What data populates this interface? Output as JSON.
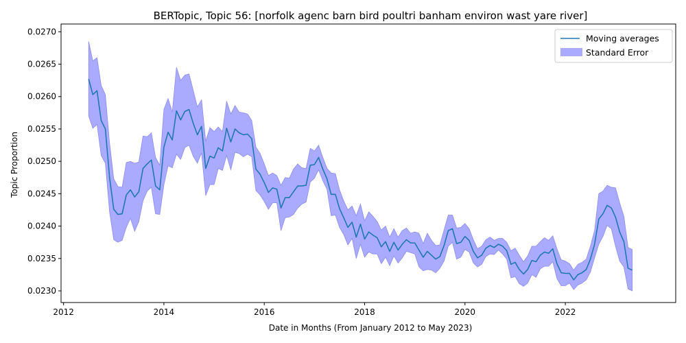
{
  "chart_data": {
    "type": "line",
    "title": "BERTopic, Topic 56: [norfolk agenc barn bird poultri banham environ wast yare river]",
    "xlabel": "Date in Months (From January 2012 to May 2023)",
    "ylabel": "Topic Proportion",
    "xlim": [
      2011.95,
      2024.2
    ],
    "ylim": [
      0.02282,
      0.02712
    ],
    "x_ticks": [
      2012,
      2014,
      2016,
      2018,
      2020,
      2022
    ],
    "y_ticks": [
      0.023,
      0.0235,
      0.024,
      0.0245,
      0.025,
      0.0255,
      0.026,
      0.0265,
      0.027
    ],
    "y_tick_labels": [
      "0.0230",
      "0.0235",
      "0.0240",
      "0.0245",
      "0.0250",
      "0.0255",
      "0.0260",
      "0.0265",
      "0.0270"
    ],
    "legend_position": "top-right",
    "colors": {
      "line": "#1f77b4",
      "band": "#aaaaff",
      "band_edge": "#8c8cf0"
    },
    "series": [
      {
        "name": "Moving averages",
        "kind": "line",
        "x": [
          2012.5,
          2012.583,
          2012.667,
          2012.75,
          2012.833,
          2012.917,
          2013.0,
          2013.083,
          2013.167,
          2013.25,
          2013.333,
          2013.417,
          2013.5,
          2013.583,
          2013.667,
          2013.75,
          2013.833,
          2013.917,
          2014.0,
          2014.083,
          2014.167,
          2014.25,
          2014.333,
          2014.417,
          2014.5,
          2014.583,
          2014.667,
          2014.75,
          2014.833,
          2014.917,
          2015.0,
          2015.083,
          2015.167,
          2015.25,
          2015.333,
          2015.417,
          2015.5,
          2015.583,
          2015.667,
          2015.75,
          2015.833,
          2015.917,
          2016.0,
          2016.083,
          2016.167,
          2016.25,
          2016.333,
          2016.417,
          2016.5,
          2016.583,
          2016.667,
          2016.75,
          2016.833,
          2016.917,
          2017.0,
          2017.083,
          2017.167,
          2017.25,
          2017.333,
          2017.417,
          2017.5,
          2017.583,
          2017.667,
          2017.75,
          2017.833,
          2017.917,
          2018.0,
          2018.083,
          2018.167,
          2018.25,
          2018.333,
          2018.417,
          2018.5,
          2018.583,
          2018.667,
          2018.75,
          2018.833,
          2018.917,
          2019.0,
          2019.083,
          2019.167,
          2019.25,
          2019.333,
          2019.417,
          2019.5,
          2019.583,
          2019.667,
          2019.75,
          2019.833,
          2019.917,
          2020.0,
          2020.083,
          2020.167,
          2020.25,
          2020.333,
          2020.417,
          2020.5,
          2020.583,
          2020.667,
          2020.75,
          2020.833,
          2020.917,
          2021.0,
          2021.083,
          2021.167,
          2021.25,
          2021.333,
          2021.417,
          2021.5,
          2021.583,
          2021.667,
          2021.75,
          2021.833,
          2021.917,
          2022.0,
          2022.083,
          2022.167,
          2022.25,
          2022.333,
          2022.417,
          2022.5,
          2022.583,
          2022.667,
          2022.75,
          2022.833,
          2022.917,
          2023.0,
          2023.083,
          2023.167,
          2023.25,
          2023.333
        ],
        "y": [
          0.02627,
          0.02603,
          0.02609,
          0.02563,
          0.0255,
          0.02475,
          0.02426,
          0.02418,
          0.02419,
          0.02448,
          0.02456,
          0.02445,
          0.02453,
          0.02489,
          0.02496,
          0.02502,
          0.02462,
          0.02456,
          0.02522,
          0.02545,
          0.02533,
          0.02578,
          0.02564,
          0.02577,
          0.0258,
          0.02559,
          0.02541,
          0.02554,
          0.02489,
          0.02508,
          0.02505,
          0.02521,
          0.02516,
          0.02551,
          0.0253,
          0.0255,
          0.02544,
          0.02541,
          0.02542,
          0.02535,
          0.02488,
          0.0248,
          0.02467,
          0.02452,
          0.02459,
          0.02457,
          0.02428,
          0.02444,
          0.02444,
          0.02453,
          0.02462,
          0.02462,
          0.02463,
          0.02494,
          0.02495,
          0.02506,
          0.02488,
          0.02473,
          0.02449,
          0.02449,
          0.02427,
          0.02413,
          0.02398,
          0.02406,
          0.02383,
          0.02403,
          0.0238,
          0.02391,
          0.02386,
          0.02382,
          0.02368,
          0.02376,
          0.02361,
          0.02375,
          0.02363,
          0.02372,
          0.02379,
          0.02374,
          0.02374,
          0.02363,
          0.02352,
          0.02361,
          0.02355,
          0.02349,
          0.02353,
          0.0237,
          0.02393,
          0.02396,
          0.02373,
          0.02375,
          0.02384,
          0.02378,
          0.02361,
          0.02351,
          0.02355,
          0.02366,
          0.0237,
          0.02367,
          0.02372,
          0.02369,
          0.02362,
          0.02341,
          0.02344,
          0.02333,
          0.02326,
          0.02333,
          0.02347,
          0.02345,
          0.02355,
          0.0236,
          0.02358,
          0.02365,
          0.02342,
          0.02328,
          0.02327,
          0.02327,
          0.02317,
          0.02325,
          0.02328,
          0.02333,
          0.02349,
          0.02372,
          0.02411,
          0.02419,
          0.02432,
          0.02428,
          0.02414,
          0.02391,
          0.02376,
          0.02335,
          0.02332
        ]
      },
      {
        "name": "Standard Error",
        "kind": "band",
        "upper": [
          0.02685,
          0.02655,
          0.0266,
          0.02617,
          0.02603,
          0.02528,
          0.02473,
          0.02461,
          0.0246,
          0.02498,
          0.025,
          0.02497,
          0.02499,
          0.02539,
          0.02538,
          0.02544,
          0.02506,
          0.02494,
          0.0258,
          0.02597,
          0.02576,
          0.02645,
          0.02625,
          0.02633,
          0.02635,
          0.0261,
          0.02584,
          0.02595,
          0.02531,
          0.02552,
          0.02546,
          0.02553,
          0.02546,
          0.02593,
          0.02573,
          0.02586,
          0.02576,
          0.02575,
          0.02573,
          0.02563,
          0.02522,
          0.02512,
          0.02496,
          0.02478,
          0.02482,
          0.02478,
          0.02463,
          0.02475,
          0.02474,
          0.02488,
          0.02496,
          0.0249,
          0.02489,
          0.0252,
          0.02516,
          0.02525,
          0.02506,
          0.02489,
          0.02482,
          0.02481,
          0.02456,
          0.02439,
          0.02425,
          0.02431,
          0.02416,
          0.02434,
          0.02408,
          0.02422,
          0.02415,
          0.02407,
          0.02394,
          0.024,
          0.02383,
          0.02396,
          0.02383,
          0.02393,
          0.02397,
          0.02389,
          0.02391,
          0.02389,
          0.02373,
          0.02389,
          0.02378,
          0.0237,
          0.02371,
          0.02394,
          0.02417,
          0.02417,
          0.02397,
          0.02398,
          0.02404,
          0.02396,
          0.02379,
          0.02365,
          0.02369,
          0.02379,
          0.02383,
          0.02378,
          0.02381,
          0.02381,
          0.02375,
          0.02362,
          0.02366,
          0.02355,
          0.02345,
          0.02354,
          0.02369,
          0.02369,
          0.02376,
          0.02382,
          0.02378,
          0.02385,
          0.02365,
          0.02348,
          0.02346,
          0.02342,
          0.02332,
          0.02341,
          0.02344,
          0.02349,
          0.02369,
          0.02393,
          0.0245,
          0.02454,
          0.02463,
          0.0246,
          0.02459,
          0.02436,
          0.02415,
          0.02367,
          0.02364
        ],
        "lower": [
          0.0257,
          0.02551,
          0.02557,
          0.02509,
          0.02497,
          0.02422,
          0.02379,
          0.02375,
          0.02378,
          0.02398,
          0.02412,
          0.02392,
          0.02407,
          0.02439,
          0.02454,
          0.0246,
          0.02419,
          0.02418,
          0.02464,
          0.02493,
          0.0249,
          0.02511,
          0.02503,
          0.02521,
          0.02525,
          0.02508,
          0.02497,
          0.02513,
          0.02447,
          0.02464,
          0.02464,
          0.02489,
          0.02486,
          0.02509,
          0.02487,
          0.02514,
          0.02512,
          0.02507,
          0.02511,
          0.02507,
          0.02455,
          0.02448,
          0.02438,
          0.02426,
          0.02436,
          0.02436,
          0.02393,
          0.02413,
          0.02414,
          0.02418,
          0.02428,
          0.02434,
          0.02437,
          0.02468,
          0.02474,
          0.02487,
          0.0247,
          0.02457,
          0.02416,
          0.02417,
          0.02398,
          0.02387,
          0.02371,
          0.02381,
          0.0235,
          0.02372,
          0.02352,
          0.0236,
          0.02357,
          0.02357,
          0.02342,
          0.02352,
          0.02339,
          0.02354,
          0.02343,
          0.02351,
          0.02361,
          0.02359,
          0.02357,
          0.02337,
          0.02331,
          0.02333,
          0.02332,
          0.02328,
          0.02335,
          0.02346,
          0.02369,
          0.02375,
          0.02349,
          0.02352,
          0.02364,
          0.0236,
          0.02343,
          0.02337,
          0.02341,
          0.02353,
          0.02357,
          0.02356,
          0.02363,
          0.02357,
          0.02349,
          0.0232,
          0.02322,
          0.02311,
          0.02307,
          0.02312,
          0.02325,
          0.02321,
          0.02334,
          0.02338,
          0.02338,
          0.02345,
          0.02319,
          0.02308,
          0.02308,
          0.02312,
          0.02302,
          0.02309,
          0.02312,
          0.02317,
          0.02329,
          0.02351,
          0.02372,
          0.02384,
          0.02401,
          0.02396,
          0.02369,
          0.02346,
          0.02337,
          0.02303,
          0.023
        ]
      }
    ]
  }
}
